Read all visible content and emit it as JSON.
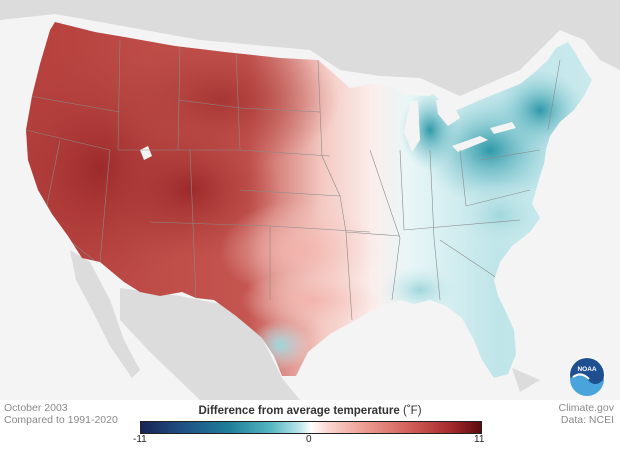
{
  "map": {
    "date_label": "October 2003",
    "baseline_label": "Compared to 1991-2020",
    "credit_source": "Climate.gov",
    "credit_data": "Data: NCEI",
    "logo_text": "NOAA",
    "background_color": "#f4f4f4",
    "land_outside_color": "#d9d9d9"
  },
  "legend": {
    "title": "Difference from average temperature",
    "unit": "(˚F)",
    "min_label": "-11",
    "mid_label": "0",
    "max_label": "11",
    "range": [
      -11,
      11
    ],
    "colors": {
      "cold_extreme": "#1a2355",
      "cold": "#2b93a8",
      "neutral": "#ffffff",
      "warm": "#d4635e",
      "warm_extreme": "#5c0a10"
    }
  }
}
